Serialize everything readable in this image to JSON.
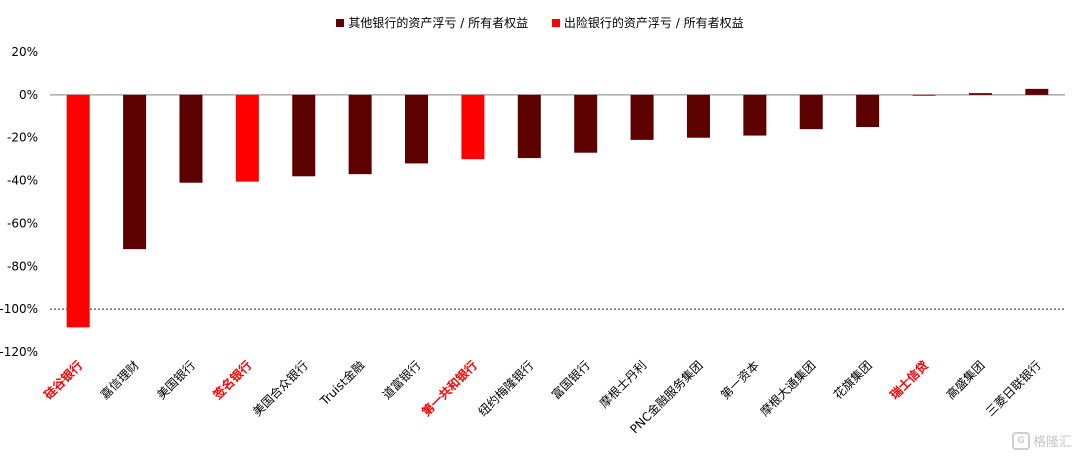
{
  "chart_data": {
    "type": "bar",
    "categories": [
      "硅谷银行",
      "嘉信理财",
      "美国银行",
      "签名银行",
      "美国合众银行",
      "Truist金融",
      "道富银行",
      "第一共和银行",
      "纽约梅隆银行",
      "富国银行",
      "摩根士丹利",
      "PNC金融服务集团",
      "第一资本",
      "摩根大通集团",
      "花旗集团",
      "瑞士信贷",
      "高盛集团",
      "三菱日联银行"
    ],
    "values": [
      -108.5,
      -72,
      -41,
      -40.5,
      -38,
      -37,
      -32,
      -30,
      -29.5,
      -27,
      -21,
      -20,
      -19,
      -16,
      -15,
      -0.3,
      0.8,
      2.8
    ],
    "failed": [
      true,
      false,
      false,
      true,
      false,
      false,
      false,
      true,
      false,
      false,
      false,
      false,
      false,
      false,
      false,
      true,
      false,
      false
    ],
    "ylim": [
      -120,
      20
    ],
    "yticks": [
      "20%",
      "0%",
      "-20%",
      "-40%",
      "-60%",
      "-80%",
      "-100%",
      "-120%"
    ],
    "ytick_values": [
      20,
      0,
      -20,
      -40,
      -60,
      -80,
      -100,
      -120
    ],
    "reference_line": -100,
    "legend": [
      {
        "label": "其他银行的资产浮亏 / 所有者权益",
        "color": "#5c0000"
      },
      {
        "label": "出险银行的资产浮亏 / 所有者权益",
        "color": "#ff0000"
      }
    ],
    "colors": {
      "other": "#5c0000",
      "failed": "#ff0000"
    },
    "label_colors": {
      "other": "#000000",
      "failed": "#ff0000"
    }
  },
  "watermark": {
    "logo": "G",
    "text": "格隆汇"
  }
}
